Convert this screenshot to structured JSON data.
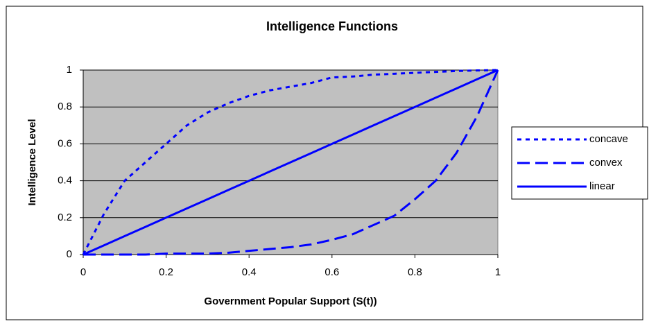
{
  "chart_data": {
    "type": "line",
    "title": "Intelligence Functions",
    "x_label": "Government Popular Support (S(t))",
    "y_label": "Intelligence Level",
    "x": [
      0,
      0.05,
      0.1,
      0.15,
      0.2,
      0.25,
      0.3,
      0.35,
      0.4,
      0.45,
      0.5,
      0.55,
      0.6,
      0.65,
      0.7,
      0.75,
      0.8,
      0.85,
      0.9,
      0.95,
      1
    ],
    "series": [
      {
        "name": "concave",
        "color": "#0000ff",
        "dash": "short",
        "values": [
          0,
          0.22,
          0.4,
          0.5,
          0.6,
          0.7,
          0.77,
          0.82,
          0.86,
          0.89,
          0.91,
          0.93,
          0.96,
          0.965,
          0.975,
          0.98,
          0.985,
          0.99,
          0.995,
          0.998,
          1
        ]
      },
      {
        "name": "convex",
        "color": "#0000ff",
        "dash": "long",
        "values": [
          0,
          0,
          0,
          0,
          0.005,
          0.005,
          0.005,
          0.01,
          0.02,
          0.03,
          0.04,
          0.055,
          0.08,
          0.11,
          0.16,
          0.21,
          0.3,
          0.4,
          0.55,
          0.75,
          1
        ]
      },
      {
        "name": "linear",
        "color": "#0000ff",
        "dash": "solid",
        "values": [
          0,
          0.05,
          0.1,
          0.15,
          0.2,
          0.25,
          0.3,
          0.35,
          0.4,
          0.45,
          0.5,
          0.55,
          0.6,
          0.65,
          0.7,
          0.75,
          0.8,
          0.85,
          0.9,
          0.95,
          1
        ]
      }
    ],
    "xlim": [
      0,
      1
    ],
    "xticks": [
      0,
      0.2,
      0.4,
      0.6,
      0.8,
      1
    ],
    "ylim": [
      0,
      1
    ],
    "yticks": [
      0,
      0.2,
      0.4,
      0.6,
      0.8,
      1
    ],
    "grid": true,
    "legend": "right"
  }
}
